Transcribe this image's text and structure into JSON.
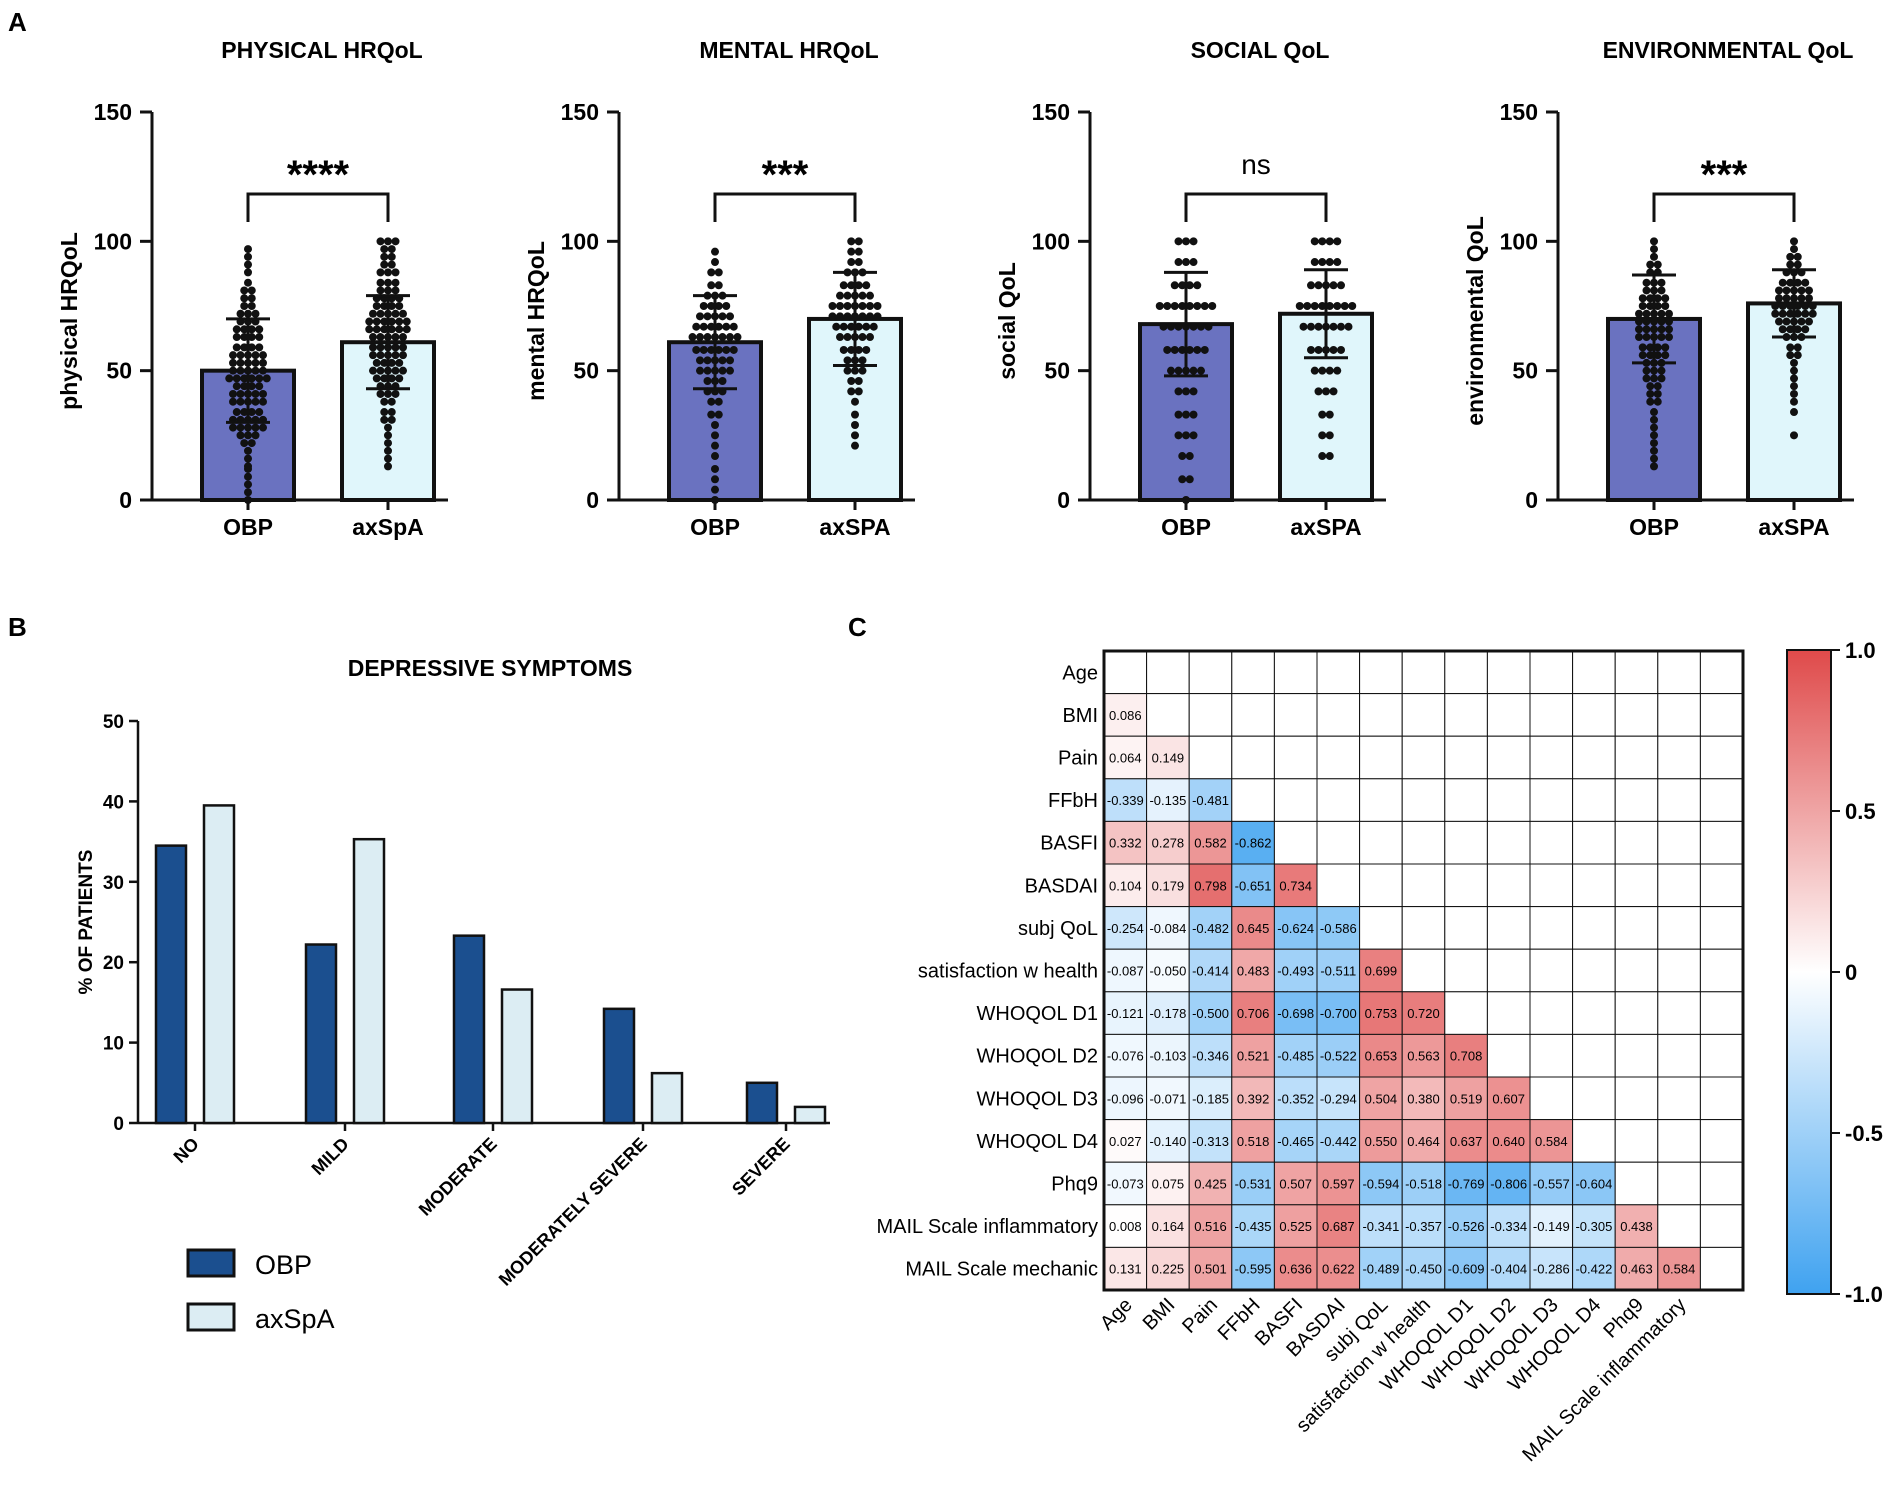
{
  "panel_labels": {
    "a": "A",
    "b": "B",
    "c": "C"
  },
  "colors": {
    "obp_bar": "#6a72c0",
    "axspa_bar": "#e0f6fb",
    "obp_b": "#1b4f8f",
    "axspa_b": "#dcedf3",
    "neg": "#3fa2f0",
    "pos": "#df4a4a"
  },
  "chart_data": [
    {
      "type": "bar",
      "panel": "A",
      "title": "PHYSICAL HRQoL",
      "ylabel": "physical HRQoL",
      "ylim": [
        0,
        150
      ],
      "yticks": [
        "0",
        "50",
        "100",
        "150"
      ],
      "categories": [
        "OBP",
        "axSpA"
      ],
      "values": [
        50,
        61
      ],
      "sd": [
        20,
        18
      ],
      "significance": "****",
      "points": [
        [
          0,
          3,
          6,
          9,
          12,
          13,
          16,
          19,
          22,
          22,
          25,
          25,
          25,
          28,
          28,
          28,
          28,
          28,
          31,
          31,
          31,
          31,
          31,
          34,
          34,
          34,
          34,
          38,
          38,
          38,
          38,
          38,
          41,
          41,
          41,
          41,
          41,
          44,
          44,
          44,
          44,
          47,
          47,
          47,
          47,
          47,
          47,
          50,
          50,
          50,
          50,
          50,
          53,
          53,
          53,
          53,
          53,
          56,
          56,
          56,
          56,
          56,
          59,
          59,
          59,
          59,
          63,
          63,
          63,
          63,
          66,
          66,
          66,
          66,
          69,
          69,
          69,
          72,
          72,
          72,
          75,
          75,
          78,
          78,
          81,
          81,
          84,
          88,
          91,
          94,
          97
        ],
        [
          13,
          16,
          19,
          22,
          25,
          28,
          31,
          31,
          34,
          34,
          38,
          38,
          41,
          41,
          41,
          44,
          44,
          44,
          47,
          47,
          47,
          47,
          50,
          50,
          50,
          50,
          50,
          53,
          53,
          53,
          53,
          56,
          56,
          56,
          56,
          56,
          59,
          59,
          59,
          59,
          59,
          63,
          63,
          63,
          63,
          63,
          66,
          66,
          66,
          66,
          66,
          66,
          69,
          69,
          69,
          69,
          69,
          69,
          72,
          72,
          72,
          72,
          72,
          75,
          75,
          75,
          75,
          78,
          78,
          78,
          78,
          81,
          81,
          81,
          84,
          84,
          84,
          88,
          88,
          88,
          91,
          91,
          94,
          94,
          97,
          97,
          100,
          100,
          100
        ]
      ]
    },
    {
      "type": "bar",
      "panel": "A",
      "title": "MENTAL HRQoL",
      "ylabel": "mental HRQoL",
      "ylim": [
        0,
        150
      ],
      "yticks": [
        "0",
        "50",
        "100",
        "150"
      ],
      "categories": [
        "OBP",
        "axSPA"
      ],
      "values": [
        61,
        70
      ],
      "sd": [
        18,
        18
      ],
      "significance": "***",
      "points": [
        [
          0,
          4,
          8,
          12,
          17,
          21,
          25,
          29,
          33,
          33,
          38,
          38,
          42,
          42,
          42,
          46,
          46,
          46,
          50,
          50,
          50,
          50,
          50,
          54,
          54,
          54,
          54,
          54,
          58,
          58,
          58,
          58,
          58,
          58,
          63,
          63,
          63,
          63,
          63,
          63,
          63,
          67,
          67,
          67,
          67,
          67,
          67,
          71,
          71,
          71,
          71,
          71,
          75,
          75,
          75,
          75,
          79,
          79,
          79,
          83,
          83,
          88,
          88,
          92,
          96
        ],
        [
          21,
          25,
          29,
          33,
          38,
          42,
          42,
          46,
          46,
          50,
          50,
          50,
          54,
          54,
          54,
          58,
          58,
          58,
          58,
          63,
          63,
          63,
          63,
          63,
          67,
          67,
          67,
          67,
          67,
          67,
          71,
          71,
          71,
          71,
          71,
          71,
          71,
          75,
          75,
          75,
          75,
          75,
          75,
          75,
          79,
          79,
          79,
          79,
          79,
          83,
          83,
          83,
          83,
          88,
          88,
          88,
          92,
          92,
          96,
          96,
          100,
          100
        ]
      ]
    },
    {
      "type": "bar",
      "panel": "A",
      "title": "SOCIAL QoL",
      "ylabel": "social QoL",
      "ylim": [
        0,
        150
      ],
      "yticks": [
        "0",
        "50",
        "100",
        "150"
      ],
      "categories": [
        "OBP",
        "axSPA"
      ],
      "values": [
        68,
        72
      ],
      "sd": [
        20,
        17
      ],
      "significance": "ns",
      "points": [
        [
          0,
          8,
          8,
          17,
          17,
          25,
          25,
          25,
          33,
          33,
          33,
          42,
          42,
          42,
          50,
          50,
          50,
          50,
          50,
          58,
          58,
          58,
          58,
          58,
          58,
          67,
          67,
          67,
          67,
          67,
          67,
          67,
          75,
          75,
          75,
          75,
          75,
          75,
          75,
          75,
          83,
          83,
          83,
          83,
          92,
          92,
          92,
          100,
          100,
          100
        ],
        [
          17,
          17,
          25,
          25,
          33,
          33,
          42,
          42,
          42,
          50,
          50,
          50,
          50,
          58,
          58,
          58,
          58,
          58,
          67,
          67,
          67,
          67,
          67,
          67,
          67,
          75,
          75,
          75,
          75,
          75,
          75,
          75,
          75,
          83,
          83,
          83,
          83,
          83,
          92,
          92,
          92,
          92,
          100,
          100,
          100,
          100
        ]
      ]
    },
    {
      "type": "bar",
      "panel": "A",
      "title": "ENVIRONMENTAL QoL",
      "ylabel": "environmental QoL",
      "ylim": [
        0,
        150
      ],
      "yticks": [
        "0",
        "50",
        "100",
        "150"
      ],
      "categories": [
        "OBP",
        "axSPA"
      ],
      "values": [
        70,
        76
      ],
      "sd": [
        17,
        13
      ],
      "significance": "***",
      "points": [
        [
          13,
          16,
          19,
          22,
          25,
          28,
          31,
          34,
          38,
          38,
          41,
          41,
          44,
          44,
          47,
          47,
          47,
          50,
          50,
          50,
          53,
          53,
          53,
          56,
          56,
          56,
          56,
          59,
          59,
          59,
          59,
          63,
          63,
          63,
          63,
          63,
          66,
          66,
          66,
          66,
          66,
          69,
          69,
          69,
          69,
          69,
          72,
          72,
          72,
          72,
          72,
          75,
          75,
          75,
          75,
          78,
          78,
          78,
          78,
          81,
          81,
          81,
          84,
          84,
          84,
          88,
          88,
          91,
          91,
          94,
          97,
          100
        ],
        [
          25,
          34,
          38,
          41,
          44,
          47,
          50,
          53,
          56,
          56,
          59,
          59,
          63,
          63,
          63,
          66,
          66,
          66,
          66,
          69,
          69,
          69,
          69,
          69,
          72,
          72,
          72,
          72,
          72,
          72,
          75,
          75,
          75,
          75,
          75,
          75,
          78,
          78,
          78,
          78,
          78,
          81,
          81,
          81,
          81,
          81,
          84,
          84,
          84,
          84,
          88,
          88,
          88,
          91,
          91,
          94,
          94,
          97,
          100
        ]
      ]
    },
    {
      "type": "bar",
      "panel": "B",
      "title": "DEPRESSIVE SYMPTOMS",
      "ylabel": "% OF PATIENTS",
      "ylim": [
        0,
        50
      ],
      "yticks": [
        "0",
        "10",
        "20",
        "30",
        "40",
        "50"
      ],
      "categories": [
        "NO",
        "MILD",
        "MODERATE",
        "MODERATELY SEVERE",
        "SEVERE"
      ],
      "series": [
        {
          "name": "OBP",
          "values": [
            34.5,
            22.2,
            23.3,
            14.2,
            5.0
          ]
        },
        {
          "name": "axSpA",
          "values": [
            39.5,
            35.3,
            16.6,
            6.2,
            2.0
          ]
        }
      ],
      "legend": "bottom-left"
    },
    {
      "type": "heatmap",
      "panel": "C",
      "title": "",
      "labels": [
        "Age",
        "BMI",
        "Pain",
        "FFbH",
        "BASFI",
        "BASDAI",
        "subj QoL",
        "satisfaction w health",
        "WHOQOL D1",
        "WHOQOL D2",
        "WHOQOL D3",
        "WHOQOL D4",
        "Phq9",
        "MAIL Scale inflammatory",
        "MAIL Scale mechanic"
      ],
      "x_labels": [
        "Age",
        "BMI",
        "Pain",
        "FFbH",
        "BASFI",
        "BASDAI",
        "subj QoL",
        "satisfaction w health",
        "WHOQOL D1",
        "WHOQOL D2",
        "WHOQOL D3",
        "WHOQOL D4",
        "Phq9",
        "MAIL Scale inflammatory"
      ],
      "lower_triangle": [
        [],
        [
          "0.086"
        ],
        [
          "0.064",
          "0.149"
        ],
        [
          "-0.339",
          "-0.135",
          "-0.481"
        ],
        [
          "0.332",
          "0.278",
          "0.582",
          "-0.862"
        ],
        [
          "0.104",
          "0.179",
          "0.798",
          "-0.651",
          "0.734"
        ],
        [
          "-0.254",
          "-0.084",
          "-0.482",
          "0.645",
          "-0.624",
          "-0.586"
        ],
        [
          "-0.087",
          "-0.050",
          "-0.414",
          "0.483",
          "-0.493",
          "-0.511",
          "0.699"
        ],
        [
          "-0.121",
          "-0.178",
          "-0.500",
          "0.706",
          "-0.698",
          "-0.700",
          "0.753",
          "0.720"
        ],
        [
          "-0.076",
          "-0.103",
          "-0.346",
          "0.521",
          "-0.485",
          "-0.522",
          "0.653",
          "0.563",
          "0.708"
        ],
        [
          "-0.096",
          "-0.071",
          "-0.185",
          "0.392",
          "-0.352",
          "-0.294",
          "0.504",
          "0.380",
          "0.519",
          "0.607"
        ],
        [
          "0.027",
          "-0.140",
          "-0.313",
          "0.518",
          "-0.465",
          "-0.442",
          "0.550",
          "0.464",
          "0.637",
          "0.640",
          "0.584"
        ],
        [
          "-0.073",
          "0.075",
          "0.425",
          "-0.531",
          "0.507",
          "0.597",
          "-0.594",
          "-0.518",
          "-0.769",
          "-0.806",
          "-0.557",
          "-0.604"
        ],
        [
          "0.008",
          "0.164",
          "0.516",
          "-0.435",
          "0.525",
          "0.687",
          "-0.341",
          "-0.357",
          "-0.526",
          "-0.334",
          "-0.149",
          "-0.305",
          "0.438"
        ],
        [
          "0.131",
          "0.225",
          "0.501",
          "-0.595",
          "0.636",
          "0.622",
          "-0.489",
          "-0.450",
          "-0.609",
          "-0.404",
          "-0.286",
          "-0.422",
          "0.463",
          "0.584"
        ]
      ],
      "colorbar_range": [
        -1.0,
        1.0
      ],
      "colorbar_ticks": [
        "1.0",
        "0.5",
        "0",
        "-0.5",
        "-1.0"
      ]
    }
  ]
}
